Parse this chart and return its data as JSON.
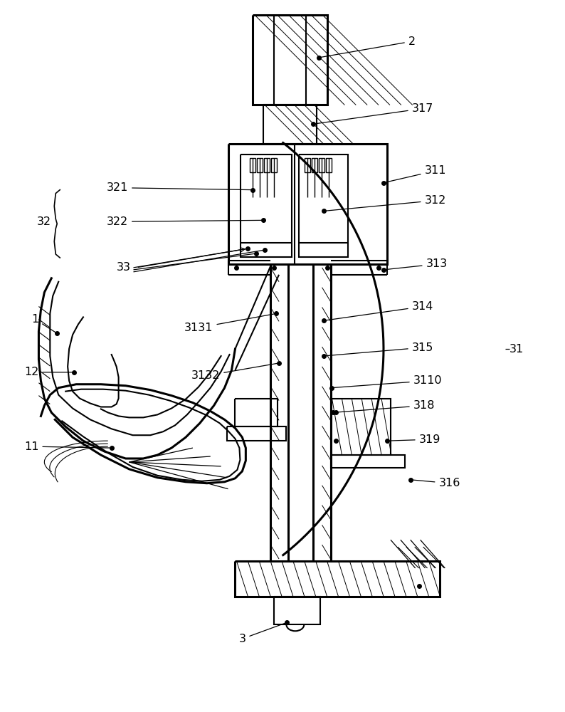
{
  "fig_width": 7.94,
  "fig_height": 10.0,
  "bg_color": "#ffffff",
  "line_color": "#000000"
}
